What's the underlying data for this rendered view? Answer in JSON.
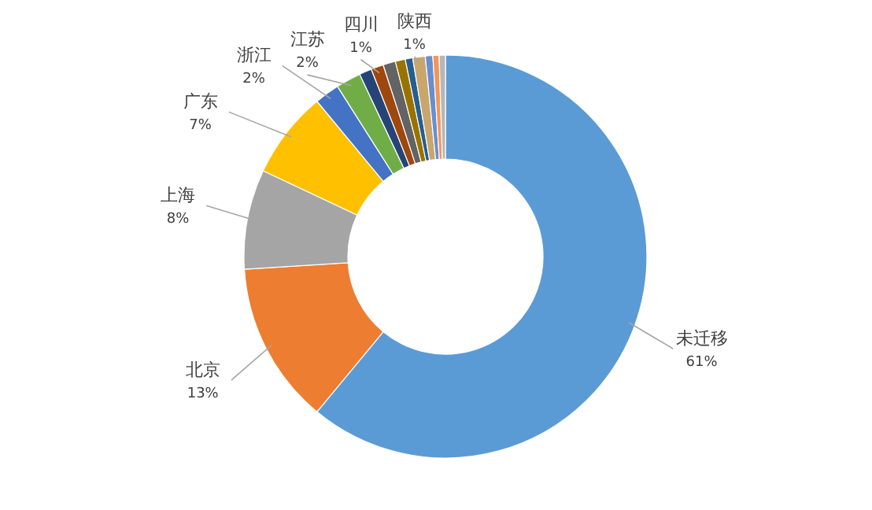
{
  "chart_data": {
    "type": "donut",
    "categories": [
      "未迁移",
      "北京",
      "上海",
      "广东",
      "浙江",
      "江苏",
      null,
      "四川",
      null,
      null,
      null,
      "陕西",
      null,
      null,
      null
    ],
    "values": [
      61,
      13,
      8,
      7,
      2,
      2,
      1,
      1,
      1,
      0.8,
      0.6,
      1,
      0.6,
      0.5,
      0.5
    ],
    "value_labels": [
      "61%",
      "13%",
      "8%",
      "7%",
      "2%",
      "2%",
      null,
      "1%",
      null,
      null,
      null,
      "1%",
      null,
      null,
      null
    ],
    "colors": [
      "#5b9bd5",
      "#ed7d31",
      "#a5a5a5",
      "#ffc000",
      "#4472c4",
      "#70ad47",
      "#264478",
      "#9e480e",
      "#636363",
      "#997300",
      "#255e91",
      "#c9a66b",
      "#698ed0",
      "#f1975a",
      "#b7b7b7"
    ]
  }
}
